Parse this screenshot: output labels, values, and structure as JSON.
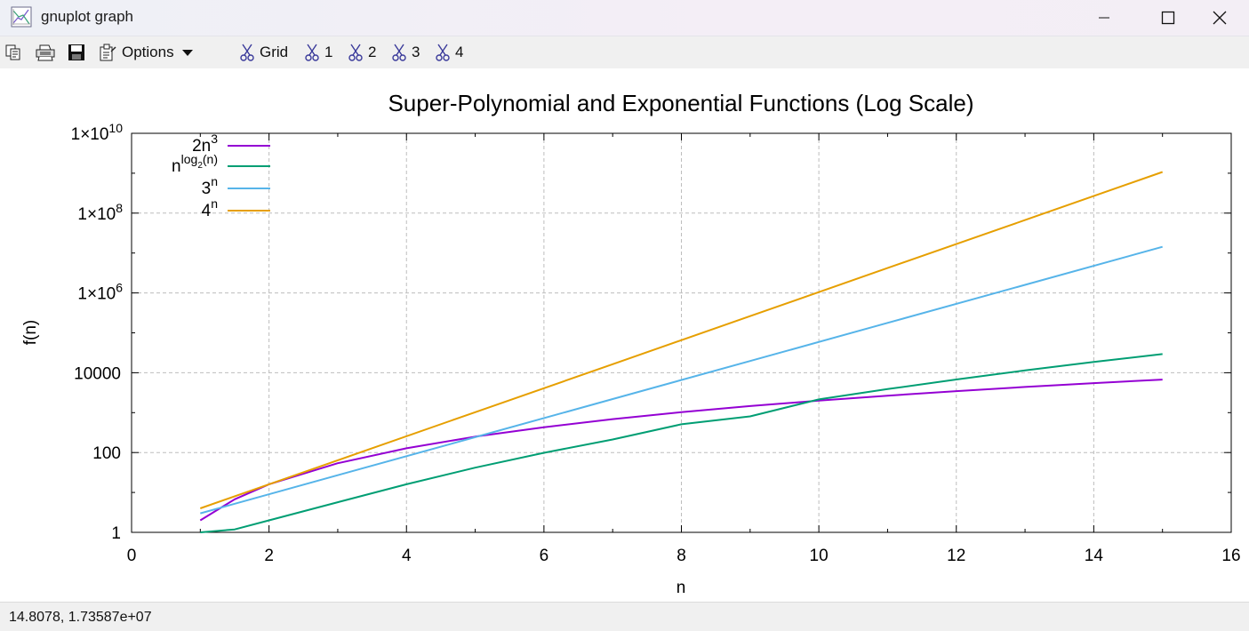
{
  "window": {
    "title": "gnuplot graph"
  },
  "toolbar": {
    "options_label": "Options",
    "grid_label": "Grid",
    "plot_toggles": [
      "1",
      "2",
      "3",
      "4"
    ]
  },
  "status": {
    "coords": "14.8078,  1.73587e+07"
  },
  "chart_data": {
    "type": "line",
    "title": "Super-Polynomial and Exponential Functions (Log Scale)",
    "xlabel": "n",
    "ylabel": "f(n)",
    "xlim": [
      0,
      16
    ],
    "ylim": [
      1,
      10000000000
    ],
    "yscale": "log",
    "grid": true,
    "legend_position": "top-left",
    "x_ticks": [
      "0",
      "2",
      "4",
      "6",
      "8",
      "10",
      "12",
      "14",
      "16"
    ],
    "y_ticks": [
      {
        "value": 1,
        "base": "1",
        "exp": ""
      },
      {
        "value": 100,
        "base": "100",
        "exp": ""
      },
      {
        "value": 10000,
        "base": "10000",
        "exp": ""
      },
      {
        "value": 1000000,
        "base": "1×10",
        "exp": "6"
      },
      {
        "value": 100000000,
        "base": "1×10",
        "exp": "8"
      },
      {
        "value": 10000000000,
        "base": "1×10",
        "exp": "10"
      }
    ],
    "series": [
      {
        "key": "cubic",
        "legend_base": "2n",
        "legend_sup": "3",
        "legend_sub": "",
        "legend_sup_tail": "",
        "color": "#9400d3",
        "x": [
          1,
          1.5,
          2,
          3,
          4,
          5,
          6,
          7,
          8,
          9,
          10,
          11,
          12,
          13,
          14,
          15
        ],
        "y": [
          2,
          6.75,
          16,
          54,
          128,
          250,
          432,
          686,
          1024,
          1458,
          2000,
          2662,
          3456,
          4394,
          5488,
          6750
        ]
      },
      {
        "key": "quasi",
        "legend_base": "n",
        "legend_sup": "log",
        "legend_sub": "2",
        "legend_sup_tail": "(n)",
        "color": "#009e73",
        "x": [
          1,
          1.5,
          2,
          3,
          4,
          5,
          6,
          7,
          8,
          9,
          10,
          11,
          12,
          13,
          14,
          15
        ],
        "y": [
          1,
          1.186,
          2,
          5.7,
          16,
          41.8,
          98.6,
          213,
          512,
          806,
          2150,
          3900,
          6770,
          11400,
          18600,
          29400
        ]
      },
      {
        "key": "three",
        "legend_base": "3",
        "legend_sup": "n",
        "legend_sub": "",
        "legend_sup_tail": "",
        "color": "#56b4e9",
        "x": [
          1,
          3,
          5,
          7,
          9,
          11,
          13,
          15
        ],
        "y": [
          3,
          27,
          243,
          2187,
          19683,
          177147,
          1594323,
          14348907
        ]
      },
      {
        "key": "four",
        "legend_base": "4",
        "legend_sup": "n",
        "legend_sub": "",
        "legend_sup_tail": "",
        "color": "#e69f00",
        "x": [
          1,
          3,
          5,
          7,
          9,
          11,
          13,
          15
        ],
        "y": [
          4,
          64,
          1024,
          16384,
          262144,
          4194304,
          67108864,
          1073741824
        ]
      }
    ]
  }
}
